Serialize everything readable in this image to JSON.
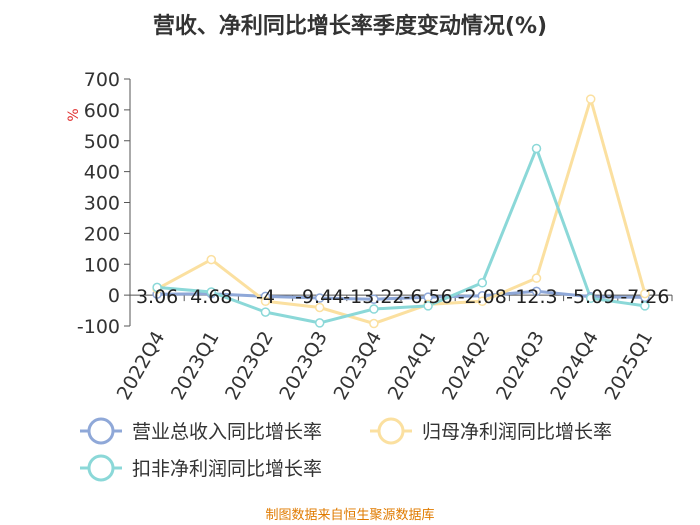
{
  "chart_data": {
    "type": "line",
    "title": "营收、净利同比增长率季度变动情况(%)",
    "ylabel": "%",
    "ylim": [
      -100,
      700
    ],
    "yticks": [
      700,
      600,
      500,
      400,
      300,
      200,
      100,
      0,
      -100
    ],
    "categories": [
      "2022Q4",
      "2023Q1",
      "2023Q2",
      "2023Q3",
      "2023Q4",
      "2024Q1",
      "2024Q2",
      "2024Q3",
      "2024Q4",
      "2025Q1"
    ],
    "series": [
      {
        "name": "营业总收入同比增长率",
        "color": "#8fa8d8",
        "values": [
          3.06,
          4.68,
          -4,
          -9.44,
          -13.22,
          -6.56,
          -2.08,
          12.3,
          -5.09,
          -7.26
        ],
        "labels": [
          "3.06",
          "4.68",
          "-4",
          "-9.44",
          "-13.22",
          "-6.56",
          "-2.08",
          "12.3",
          "-5.09",
          "-7.26"
        ]
      },
      {
        "name": "归母净利润同比增长率",
        "color": "#fbe0a0",
        "values": [
          20,
          115,
          -20,
          -40,
          -92,
          -30,
          -20,
          55,
          635,
          5
        ]
      },
      {
        "name": "扣非净利润同比增长率",
        "color": "#8bd8d8",
        "values": [
          25,
          10,
          -55,
          -90,
          -45,
          -35,
          40,
          475,
          -10,
          -35
        ]
      }
    ],
    "legend_position": "bottom",
    "grid": false
  },
  "source": "制图数据来自恒生聚源数据库"
}
